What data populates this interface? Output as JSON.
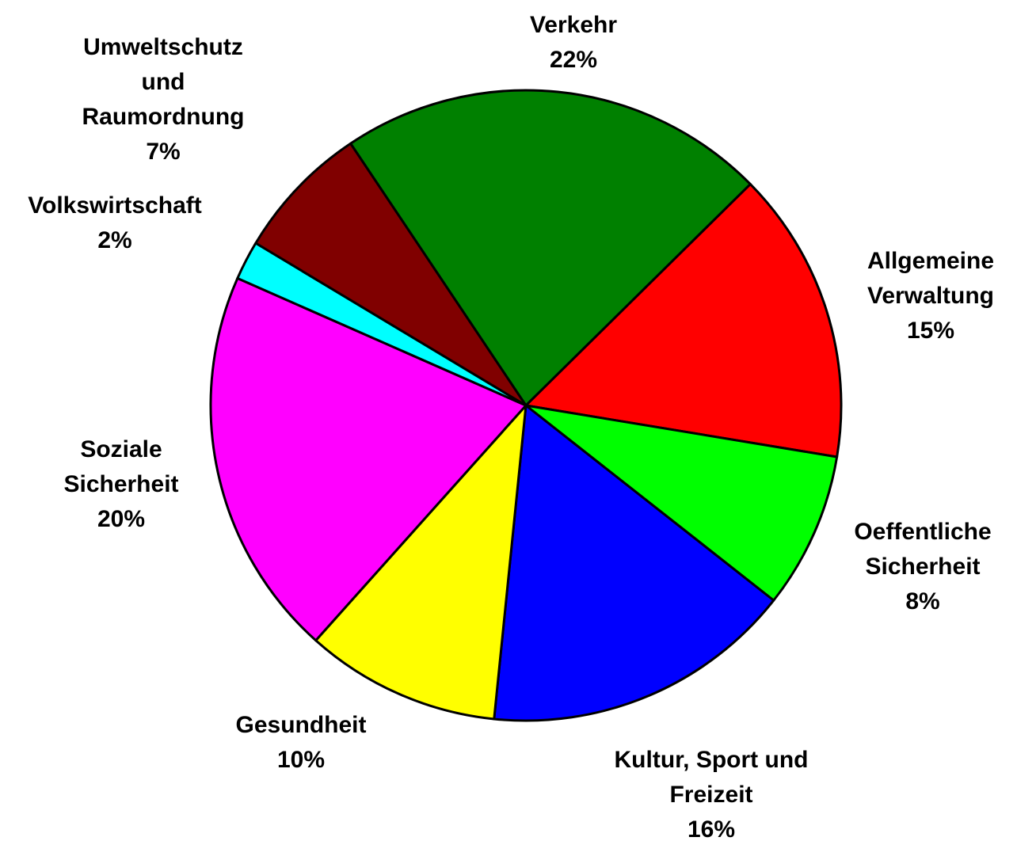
{
  "chart_data": {
    "type": "pie",
    "categories": [
      "Verkehr",
      "Allgemeine Verwaltung",
      "Oeffentliche Sicherheit",
      "Kultur, Sport und Freizeit",
      "Gesundheit",
      "Soziale Sicherheit",
      "Volkswirtschaft",
      "Umweltschutz und Raumordnung"
    ],
    "values": [
      22,
      15,
      8,
      16,
      10,
      20,
      2,
      7
    ],
    "value_labels": [
      "22%",
      "15%",
      "8%",
      "16%",
      "10%",
      "20%",
      "2%",
      "7%"
    ],
    "colors": [
      "#008000",
      "#ff0000",
      "#00ff00",
      "#0000ff",
      "#ffff00",
      "#ff00ff",
      "#00ffff",
      "#800000"
    ]
  }
}
